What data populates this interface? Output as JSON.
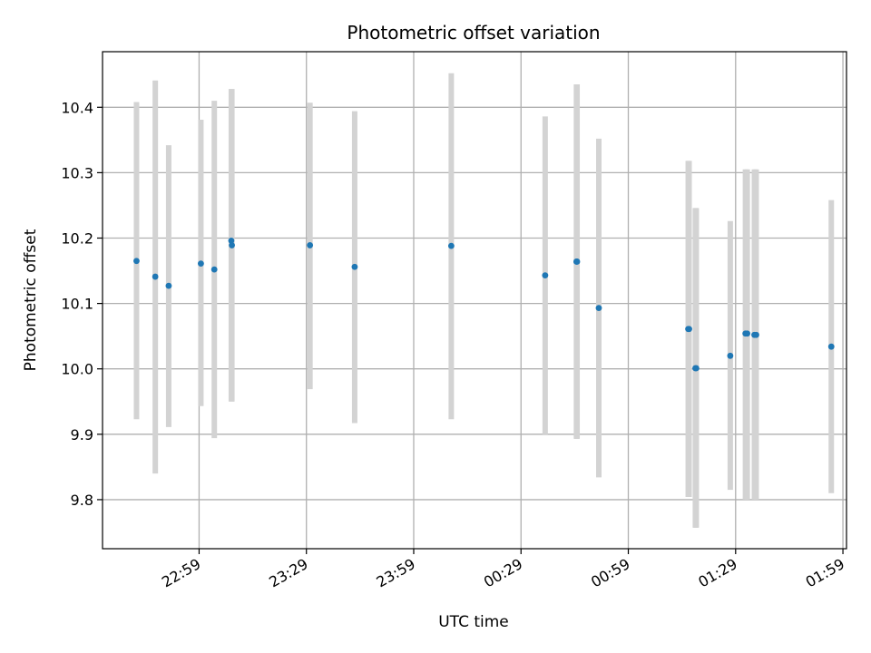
{
  "chart_data": {
    "type": "scatter",
    "title": "Photometric offset variation",
    "xlabel": "UTC time",
    "ylabel": "Photometric offset",
    "x_axis": {
      "kind": "time",
      "range": [
        "22:32",
        "02:00"
      ],
      "ticks": [
        "22:59",
        "23:29",
        "23:59",
        "00:29",
        "00:59",
        "01:29",
        "01:59"
      ]
    },
    "y_axis": {
      "range": [
        9.725,
        10.485
      ],
      "ticks": [
        "9.8",
        "9.9",
        "10.0",
        "10.1",
        "10.2",
        "10.3",
        "10.4"
      ]
    },
    "grid": true,
    "colors": {
      "points": "#1f77b4",
      "errorbars": "#d3d3d3",
      "grid": "#b0b0b0"
    },
    "points": [
      {
        "t": "22:41:30",
        "y": 10.165,
        "lo": 9.923,
        "hi": 10.408
      },
      {
        "t": "22:46:45",
        "y": 10.141,
        "lo": 9.84,
        "hi": 10.441
      },
      {
        "t": "22:50:30",
        "y": 10.127,
        "lo": 9.911,
        "hi": 10.342
      },
      {
        "t": "22:59:30",
        "y": 10.161,
        "lo": 9.943,
        "hi": 10.381
      },
      {
        "t": "23:03:15",
        "y": 10.152,
        "lo": 9.894,
        "hi": 10.41
      },
      {
        "t": "23:08:00",
        "y": 10.196,
        "lo": 9.95,
        "hi": 10.428
      },
      {
        "t": "23:08:10",
        "y": 10.189,
        "lo": 9.95,
        "hi": 10.428
      },
      {
        "t": "23:30:00",
        "y": 10.189,
        "lo": 9.969,
        "hi": 10.407
      },
      {
        "t": "23:42:30",
        "y": 10.156,
        "lo": 9.917,
        "hi": 10.394
      },
      {
        "t": "00:09:30",
        "y": 10.188,
        "lo": 9.923,
        "hi": 10.452
      },
      {
        "t": "00:35:45",
        "y": 10.143,
        "lo": 9.9,
        "hi": 10.386
      },
      {
        "t": "00:44:30",
        "y": 10.164,
        "lo": 9.893,
        "hi": 10.435
      },
      {
        "t": "00:44:40",
        "y": 10.164,
        "lo": 9.893,
        "hi": 10.435
      },
      {
        "t": "00:50:45",
        "y": 10.093,
        "lo": 9.834,
        "hi": 10.352
      },
      {
        "t": "01:15:45",
        "y": 10.061,
        "lo": 9.804,
        "hi": 10.318
      },
      {
        "t": "01:16:00",
        "y": 10.061,
        "lo": 9.804,
        "hi": 10.318
      },
      {
        "t": "01:17:45",
        "y": 10.001,
        "lo": 9.757,
        "hi": 10.246
      },
      {
        "t": "01:18:00",
        "y": 10.001,
        "lo": 9.757,
        "hi": 10.246
      },
      {
        "t": "01:27:30",
        "y": 10.02,
        "lo": 9.815,
        "hi": 10.226
      },
      {
        "t": "01:31:45",
        "y": 10.054,
        "lo": 9.8,
        "hi": 10.305
      },
      {
        "t": "01:32:15",
        "y": 10.054,
        "lo": 9.8,
        "hi": 10.305
      },
      {
        "t": "01:34:15",
        "y": 10.052,
        "lo": 9.8,
        "hi": 10.305
      },
      {
        "t": "01:34:45",
        "y": 10.052,
        "lo": 9.8,
        "hi": 10.305
      },
      {
        "t": "01:55:45",
        "y": 10.034,
        "lo": 9.81,
        "hi": 10.258
      }
    ]
  }
}
